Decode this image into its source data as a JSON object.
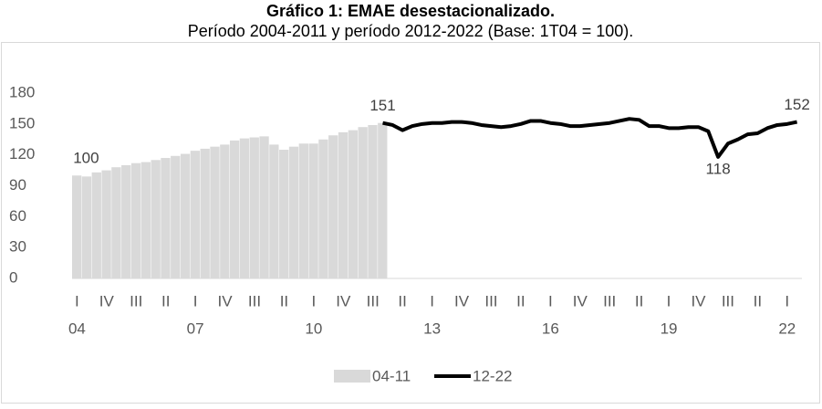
{
  "chart_data": {
    "type": "bar_line",
    "title": "Gráfico 1: EMAE desestacionalizado.",
    "subtitle": "Período 2004-2011 y período 2012-2022 (Base: 1T04 = 100).",
    "categories": [
      "I",
      null,
      null,
      "IV",
      null,
      null,
      "III",
      null,
      null,
      "II",
      null,
      null,
      "I",
      null,
      null,
      "IV",
      null,
      null,
      "III",
      null,
      null,
      "II",
      null,
      null,
      "I",
      null,
      null,
      "IV",
      null,
      null,
      "III",
      null,
      null,
      "II",
      null,
      null,
      "I",
      null,
      null,
      "IV",
      null,
      null,
      "III",
      null,
      null,
      "II",
      null,
      null,
      "I",
      null,
      null,
      "IV",
      null,
      null,
      "III",
      null,
      null,
      "II",
      null,
      null,
      "I",
      null,
      null,
      "IV",
      null,
      null,
      "III",
      null,
      null,
      "II",
      null,
      null,
      "I",
      null
    ],
    "years": [
      "04",
      null,
      null,
      null,
      null,
      null,
      null,
      null,
      null,
      null,
      null,
      null,
      "07",
      null,
      null,
      null,
      null,
      null,
      null,
      null,
      null,
      null,
      null,
      null,
      "10",
      null,
      null,
      null,
      null,
      null,
      null,
      null,
      null,
      null,
      null,
      null,
      "13",
      null,
      null,
      null,
      null,
      null,
      null,
      null,
      null,
      null,
      null,
      null,
      "16",
      null,
      null,
      null,
      null,
      null,
      null,
      null,
      null,
      null,
      null,
      null,
      "19",
      null,
      null,
      null,
      null,
      null,
      null,
      null,
      null,
      null,
      null,
      null,
      "22",
      null
    ],
    "series": [
      {
        "name": "04-11",
        "type": "bar",
        "color": "#d9d9d9",
        "labeled": [
          0,
          31
        ],
        "values": [
          100,
          99,
          103,
          105,
          108,
          110,
          112,
          113,
          115,
          117,
          119,
          121,
          124,
          126,
          128,
          130,
          134,
          136,
          137,
          138,
          130,
          125,
          128,
          131,
          131,
          135,
          139,
          142,
          144,
          147,
          149,
          151,
          null,
          null,
          null,
          null,
          null,
          null,
          null,
          null,
          null,
          null,
          null,
          null,
          null,
          null,
          null,
          null,
          null,
          null,
          null,
          null,
          null,
          null,
          null,
          null,
          null,
          null,
          null,
          null,
          null,
          null,
          null,
          null,
          null,
          null,
          null,
          null,
          null,
          null,
          null,
          null,
          null,
          null
        ]
      },
      {
        "name": "12-22",
        "type": "line",
        "color": "#000000",
        "labeled": [
          65,
          73
        ],
        "values": [
          null,
          null,
          null,
          null,
          null,
          null,
          null,
          null,
          null,
          null,
          null,
          null,
          null,
          null,
          null,
          null,
          null,
          null,
          null,
          null,
          null,
          null,
          null,
          null,
          null,
          null,
          null,
          null,
          null,
          null,
          null,
          151,
          149,
          144,
          148,
          150,
          151,
          151,
          152,
          152,
          151,
          149,
          148,
          147,
          148,
          150,
          153,
          153,
          151,
          150,
          148,
          148,
          149,
          150,
          151,
          153,
          155,
          154,
          148,
          148,
          146,
          146,
          147,
          147,
          143,
          118,
          131,
          135,
          140,
          141,
          146,
          149,
          150,
          152
        ]
      }
    ],
    "ylim": [
      0,
      180
    ],
    "yticks": [
      0,
      30,
      60,
      90,
      120,
      150,
      180
    ],
    "legend": "bottom"
  }
}
